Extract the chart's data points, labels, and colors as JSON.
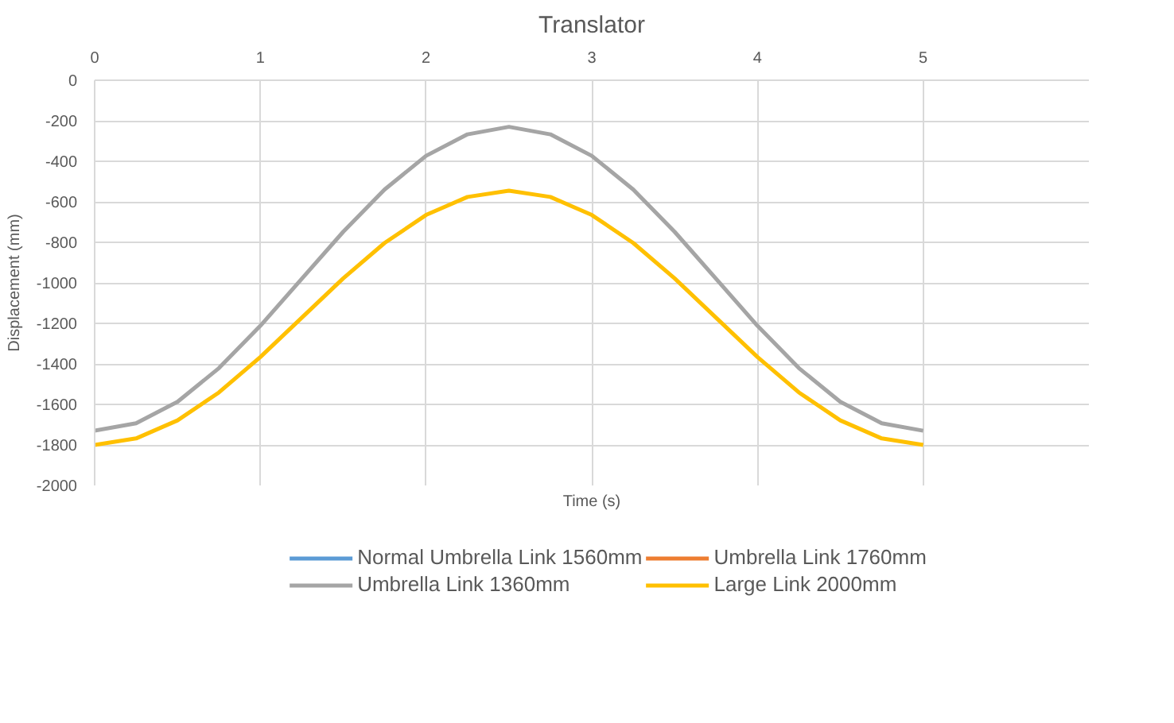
{
  "chart_data": {
    "type": "line",
    "title": "Translator",
    "xlabel": "Time (s)",
    "ylabel": "Displacement (mm)",
    "x": [
      0,
      0.25,
      0.5,
      0.75,
      1,
      1.25,
      1.5,
      1.75,
      2,
      2.25,
      2.5,
      2.75,
      3,
      3.25,
      3.5,
      3.75,
      4,
      4.25,
      4.5,
      4.75,
      5
    ],
    "series": [
      {
        "name": "Normal Umbrella Link 1560mm",
        "color": "#5b9bd5",
        "values": [
          null,
          null,
          null,
          null,
          null,
          null,
          null,
          null,
          null,
          null,
          null,
          null,
          null,
          null,
          null,
          null,
          null,
          null,
          null,
          null,
          null
        ]
      },
      {
        "name": "Umbrella Link 1760mm",
        "color": "#ed7d31",
        "values": [
          null,
          null,
          null,
          null,
          null,
          null,
          null,
          null,
          null,
          null,
          null,
          null,
          null,
          null,
          null,
          null,
          null,
          null,
          null,
          null,
          null
        ]
      },
      {
        "name": "Umbrella Link 1360mm",
        "color": "#a5a5a5",
        "values": [
          -1730,
          -1693,
          -1587,
          -1421,
          -1212,
          -980,
          -748,
          -539,
          -373,
          -267,
          -230,
          -267,
          -373,
          -539,
          -748,
          -980,
          -1212,
          -1421,
          -1587,
          -1693,
          -1730
        ]
      },
      {
        "name": "Large Link 2000mm",
        "color": "#ffc000",
        "values": [
          -1800,
          -1768,
          -1679,
          -1541,
          -1366,
          -1172,
          -978,
          -803,
          -665,
          -576,
          -545,
          -576,
          -665,
          -803,
          -978,
          -1172,
          -1366,
          -1541,
          -1679,
          -1768,
          -1800
        ]
      }
    ],
    "xlim": [
      0,
      6
    ],
    "xticks": [
      0,
      1,
      2,
      3,
      4,
      5
    ],
    "ylim": [
      -2000,
      0
    ],
    "yticks": [
      -2000,
      -1800,
      -1600,
      -1400,
      -1200,
      -1000,
      -800,
      -600,
      -400,
      -200,
      0
    ],
    "grid": true,
    "legend": "bottom",
    "marker": "none",
    "line_style": "solid"
  }
}
